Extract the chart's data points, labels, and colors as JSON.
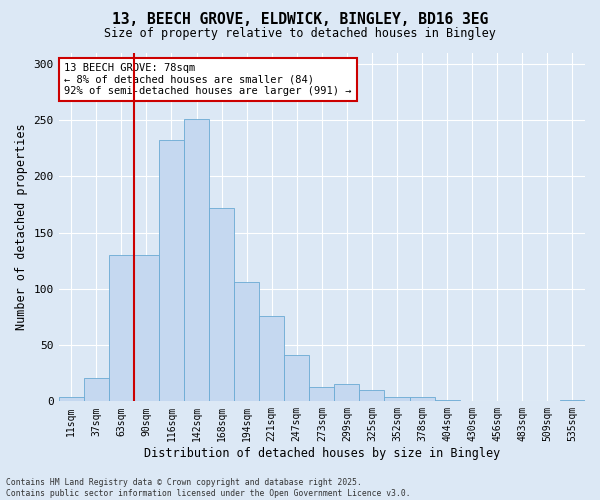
{
  "title_line1": "13, BEECH GROVE, ELDWICK, BINGLEY, BD16 3EG",
  "title_line2": "Size of property relative to detached houses in Bingley",
  "xlabel": "Distribution of detached houses by size in Bingley",
  "ylabel": "Number of detached properties",
  "bar_color": "#c5d8f0",
  "bar_edge_color": "#6aaad4",
  "background_color": "#dce8f5",
  "grid_color": "white",
  "vline_color": "#cc0000",
  "vline_index": 2,
  "annotation_text": "13 BEECH GROVE: 78sqm\n← 8% of detached houses are smaller (84)\n92% of semi-detached houses are larger (991) →",
  "annotation_box_color": "white",
  "annotation_box_edge_color": "#cc0000",
  "footer_text": "Contains HM Land Registry data © Crown copyright and database right 2025.\nContains public sector information licensed under the Open Government Licence v3.0.",
  "categories": [
    "11sqm",
    "37sqm",
    "63sqm",
    "90sqm",
    "116sqm",
    "142sqm",
    "168sqm",
    "194sqm",
    "221sqm",
    "247sqm",
    "273sqm",
    "299sqm",
    "325sqm",
    "352sqm",
    "378sqm",
    "404sqm",
    "430sqm",
    "456sqm",
    "483sqm",
    "509sqm",
    "535sqm"
  ],
  "values": [
    4,
    21,
    130,
    130,
    232,
    251,
    172,
    106,
    76,
    41,
    13,
    15,
    10,
    4,
    4,
    1,
    0,
    0,
    0,
    0,
    1
  ],
  "ylim": [
    0,
    310
  ],
  "yticks": [
    0,
    50,
    100,
    150,
    200,
    250,
    300
  ]
}
